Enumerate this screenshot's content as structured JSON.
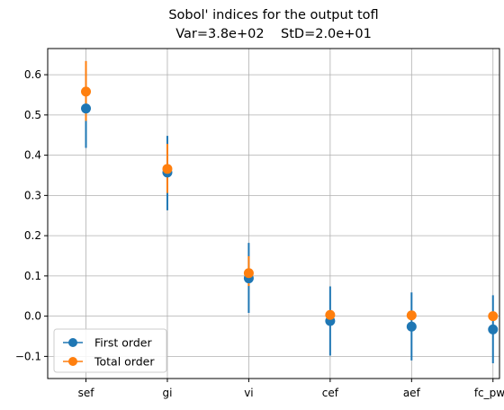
{
  "chart_data": {
    "type": "scatter",
    "title": "Sobol' indices for the output tofl",
    "subtitle": "Var=3.8e+02    StD=2.0e+01",
    "xlabel": "",
    "ylabel": "",
    "categories": [
      "sef",
      "gi",
      "vi",
      "cef",
      "aef",
      "fc_pwd"
    ],
    "ylim": [
      -0.155,
      0.665
    ],
    "yticks": [
      -0.1,
      0.0,
      0.1,
      0.2,
      0.3,
      0.4,
      0.5,
      0.6
    ],
    "ytick_labels": [
      "−0.1",
      "0.0",
      "0.1",
      "0.2",
      "0.3",
      "0.4",
      "0.5",
      "0.6"
    ],
    "grid": true,
    "legend_position": "lower-left",
    "series": [
      {
        "name": "First order",
        "color": "#1f77b4",
        "values": [
          0.516,
          0.357,
          0.094,
          -0.012,
          -0.026,
          -0.033
        ],
        "lower": [
          0.418,
          0.263,
          0.008,
          -0.098,
          -0.11,
          -0.117
        ],
        "upper": [
          0.615,
          0.448,
          0.182,
          0.074,
          0.059,
          0.052
        ]
      },
      {
        "name": "Total order",
        "color": "#ff7f0e",
        "values": [
          0.558,
          0.366,
          0.107,
          0.003,
          0.002,
          0.0
        ],
        "lower": [
          0.485,
          0.306,
          0.075,
          -0.005,
          -0.003,
          -0.002
        ],
        "upper": [
          0.634,
          0.428,
          0.149,
          0.011,
          0.007,
          0.003
        ]
      }
    ]
  }
}
